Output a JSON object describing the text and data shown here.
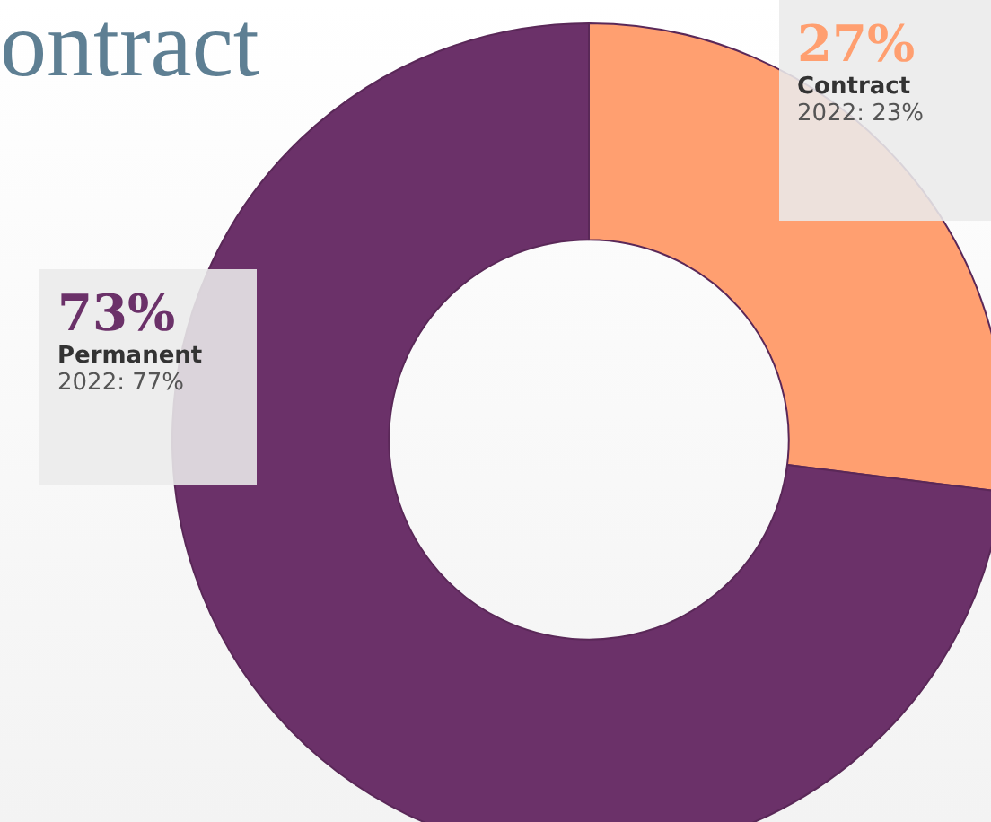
{
  "chart_data": {
    "type": "donut",
    "title": "ontract",
    "categories": [
      "Contract",
      "Permanent"
    ],
    "values": [
      27,
      73
    ],
    "colors": [
      "#ff9f70",
      "#6b3169"
    ],
    "value_labels": [
      "27%",
      "73%"
    ],
    "legend": false,
    "annotations": [
      "2022: 23%",
      "2022: 77%"
    ]
  }
}
